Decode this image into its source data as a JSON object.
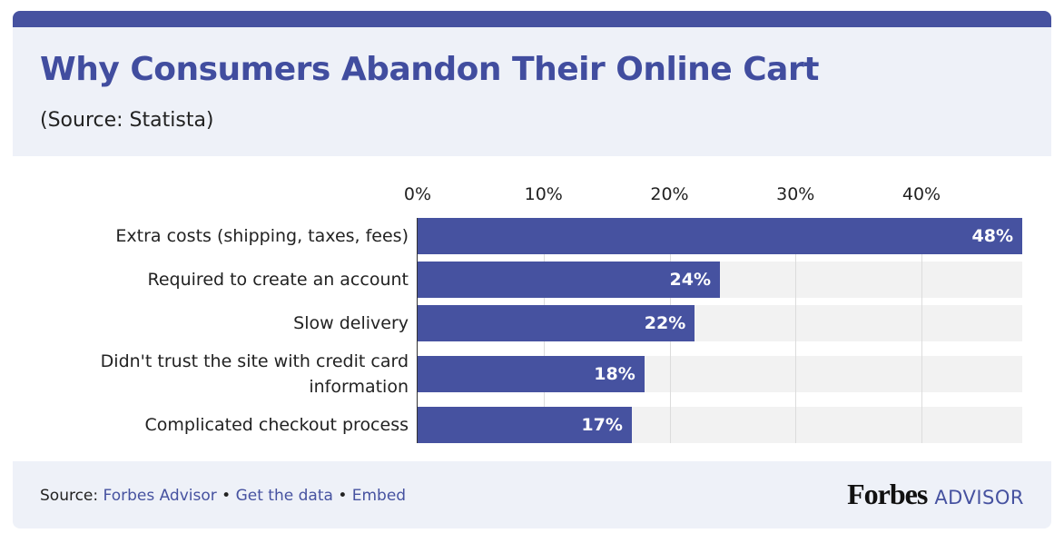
{
  "chart_data": {
    "type": "bar",
    "orientation": "horizontal",
    "title": "Why Consumers Abandon Their Online Cart",
    "subtitle": "(Source: Statista)",
    "categories": [
      "Extra costs (shipping, taxes, fees)",
      "Required to create an account",
      "Slow delivery",
      "Didn't trust the site with credit card information",
      "Complicated checkout process"
    ],
    "values": [
      48,
      24,
      22,
      18,
      17
    ],
    "value_labels": [
      "48%",
      "24%",
      "22%",
      "18%",
      "17%"
    ],
    "color": "#4652a0",
    "xlim": [
      0,
      48
    ],
    "xticks": [
      {
        "value": 0,
        "label": "0%"
      },
      {
        "value": 10,
        "label": "10%"
      },
      {
        "value": 20,
        "label": "20%"
      },
      {
        "value": 30,
        "label": "30%"
      },
      {
        "value": 40,
        "label": "40%"
      }
    ],
    "grid": true
  },
  "footer": {
    "source_label": "Source:",
    "links": [
      "Forbes Advisor",
      "Get the data",
      "Embed"
    ],
    "separator": "•",
    "brand": "Forbes",
    "brand_suffix": "ADVISOR"
  }
}
